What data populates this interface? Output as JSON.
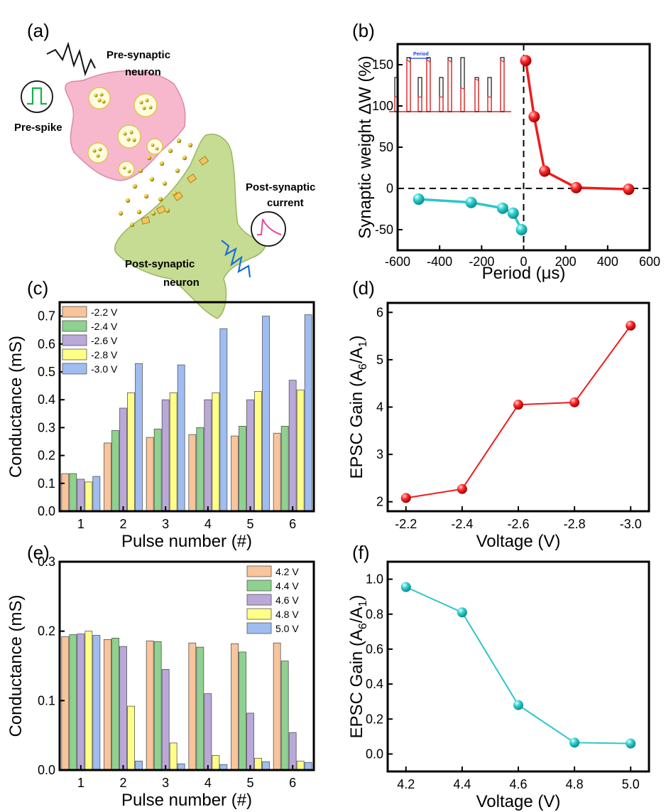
{
  "panels": {
    "a": {
      "letter": "(a)",
      "labels": {
        "pre_neuron": [
          "Pre-synaptic",
          "neuron"
        ],
        "pre_spike": "Pre-spike",
        "post_current": [
          "Post-synaptic",
          "current"
        ],
        "post_neuron": [
          "Post-synaptic",
          "neuron"
        ]
      },
      "colors": {
        "pre_cell": "#f7b8cd",
        "post_cell": "#c6dc93",
        "vesicle": "#e0c23a",
        "spike": "#16b04b",
        "current": "#e84aa0",
        "zigzag_post": "#1a6fd6"
      }
    },
    "b": {
      "letter": "(b)",
      "inset_label": "Period"
    },
    "c": {
      "letter": "(c)"
    },
    "d": {
      "letter": "(d)"
    },
    "e": {
      "letter": "(e)"
    },
    "f": {
      "letter": "(f)"
    }
  },
  "chart_data": [
    {
      "id": "b",
      "type": "scatter",
      "xlabel": "Period (μs)",
      "ylabel": "Synaptic weight ΔW (%)",
      "xlim": [
        -600,
        600
      ],
      "ylim": [
        -75,
        175
      ],
      "xticks": [
        -600,
        -400,
        -200,
        0,
        200,
        400,
        600
      ],
      "yticks": [
        -50,
        0,
        50,
        100,
        150
      ],
      "series": [
        {
          "color": "#2dc6c6",
          "x": [
            -500,
            -250,
            -100,
            -50,
            -10
          ],
          "y": [
            -13,
            -17,
            -24,
            -30,
            -50
          ]
        },
        {
          "color": "#ee1c1c",
          "x": [
            10,
            50,
            100,
            250,
            500
          ],
          "y": [
            155,
            87,
            21,
            1,
            -1
          ]
        }
      ]
    },
    {
      "id": "c",
      "type": "bar",
      "xlabel": "Pulse number (#)",
      "ylabel": "Conductance (mS)",
      "categories": [
        "1",
        "2",
        "3",
        "4",
        "5",
        "6"
      ],
      "ylim": [
        0,
        0.75
      ],
      "yticks": [
        0.0,
        0.1,
        0.2,
        0.3,
        0.4,
        0.5,
        0.6,
        0.7
      ],
      "legend_position": "top-left",
      "series": [
        {
          "name": "-2.2 V",
          "color": "#f9c49a",
          "values": [
            0.135,
            0.245,
            0.265,
            0.275,
            0.27,
            0.28
          ]
        },
        {
          "name": "-2.4 V",
          "color": "#8fd18f",
          "values": [
            0.135,
            0.29,
            0.295,
            0.3,
            0.305,
            0.305
          ]
        },
        {
          "name": "-2.6 V",
          "color": "#b9a8d8",
          "values": [
            0.115,
            0.37,
            0.4,
            0.4,
            0.4,
            0.47
          ]
        },
        {
          "name": "-2.8 V",
          "color": "#ffff88",
          "values": [
            0.105,
            0.425,
            0.425,
            0.425,
            0.43,
            0.435
          ]
        },
        {
          "name": "-3.0 V",
          "color": "#9fbdf0",
          "values": [
            0.125,
            0.53,
            0.525,
            0.655,
            0.7,
            0.705
          ]
        }
      ]
    },
    {
      "id": "d",
      "type": "line",
      "xlabel": "Voltage (V)",
      "ylabel": "EPSC Gain (A6/A1)",
      "categories": [
        "-2.2",
        "-2.4",
        "-2.6",
        "-2.8",
        "-3.0"
      ],
      "ylim": [
        1.8,
        6.2
      ],
      "yticks": [
        2,
        3,
        4,
        5,
        6
      ],
      "series": [
        {
          "color": "#ee1c1c",
          "values": [
            2.08,
            2.27,
            4.05,
            4.1,
            5.72
          ]
        }
      ]
    },
    {
      "id": "e",
      "type": "bar",
      "xlabel": "Pulse number (#)",
      "ylabel": "Conductance (mS)",
      "categories": [
        "1",
        "2",
        "3",
        "4",
        "5",
        "6"
      ],
      "ylim": [
        0,
        0.3
      ],
      "yticks": [
        0.0,
        0.1,
        0.2,
        0.3
      ],
      "legend_position": "top-right",
      "series": [
        {
          "name": "4.2 V",
          "color": "#f9c49a",
          "values": [
            0.192,
            0.188,
            0.186,
            0.183,
            0.182,
            0.183
          ]
        },
        {
          "name": "4.4 V",
          "color": "#8fd18f",
          "values": [
            0.195,
            0.19,
            0.185,
            0.177,
            0.17,
            0.157
          ]
        },
        {
          "name": "4.6 V",
          "color": "#b9a8d8",
          "values": [
            0.196,
            0.178,
            0.145,
            0.11,
            0.082,
            0.054
          ]
        },
        {
          "name": "4.8 V",
          "color": "#ffff88",
          "values": [
            0.2,
            0.092,
            0.039,
            0.021,
            0.017,
            0.013
          ]
        },
        {
          "name": "5.0 V",
          "color": "#9fbdf0",
          "values": [
            0.194,
            0.013,
            0.009,
            0.008,
            0.012,
            0.011
          ]
        }
      ]
    },
    {
      "id": "f",
      "type": "line",
      "xlabel": "Voltage (V)",
      "ylabel": "EPSC Gain (A6/A1)",
      "categories": [
        "4.2",
        "4.4",
        "4.6",
        "4.8",
        "5.0"
      ],
      "ylim": [
        -0.1,
        1.1
      ],
      "yticks": [
        0.0,
        0.2,
        0.4,
        0.6,
        0.8,
        1.0
      ],
      "series": [
        {
          "color": "#2dc6c6",
          "values": [
            0.955,
            0.81,
            0.28,
            0.065,
            0.06
          ]
        }
      ]
    }
  ]
}
